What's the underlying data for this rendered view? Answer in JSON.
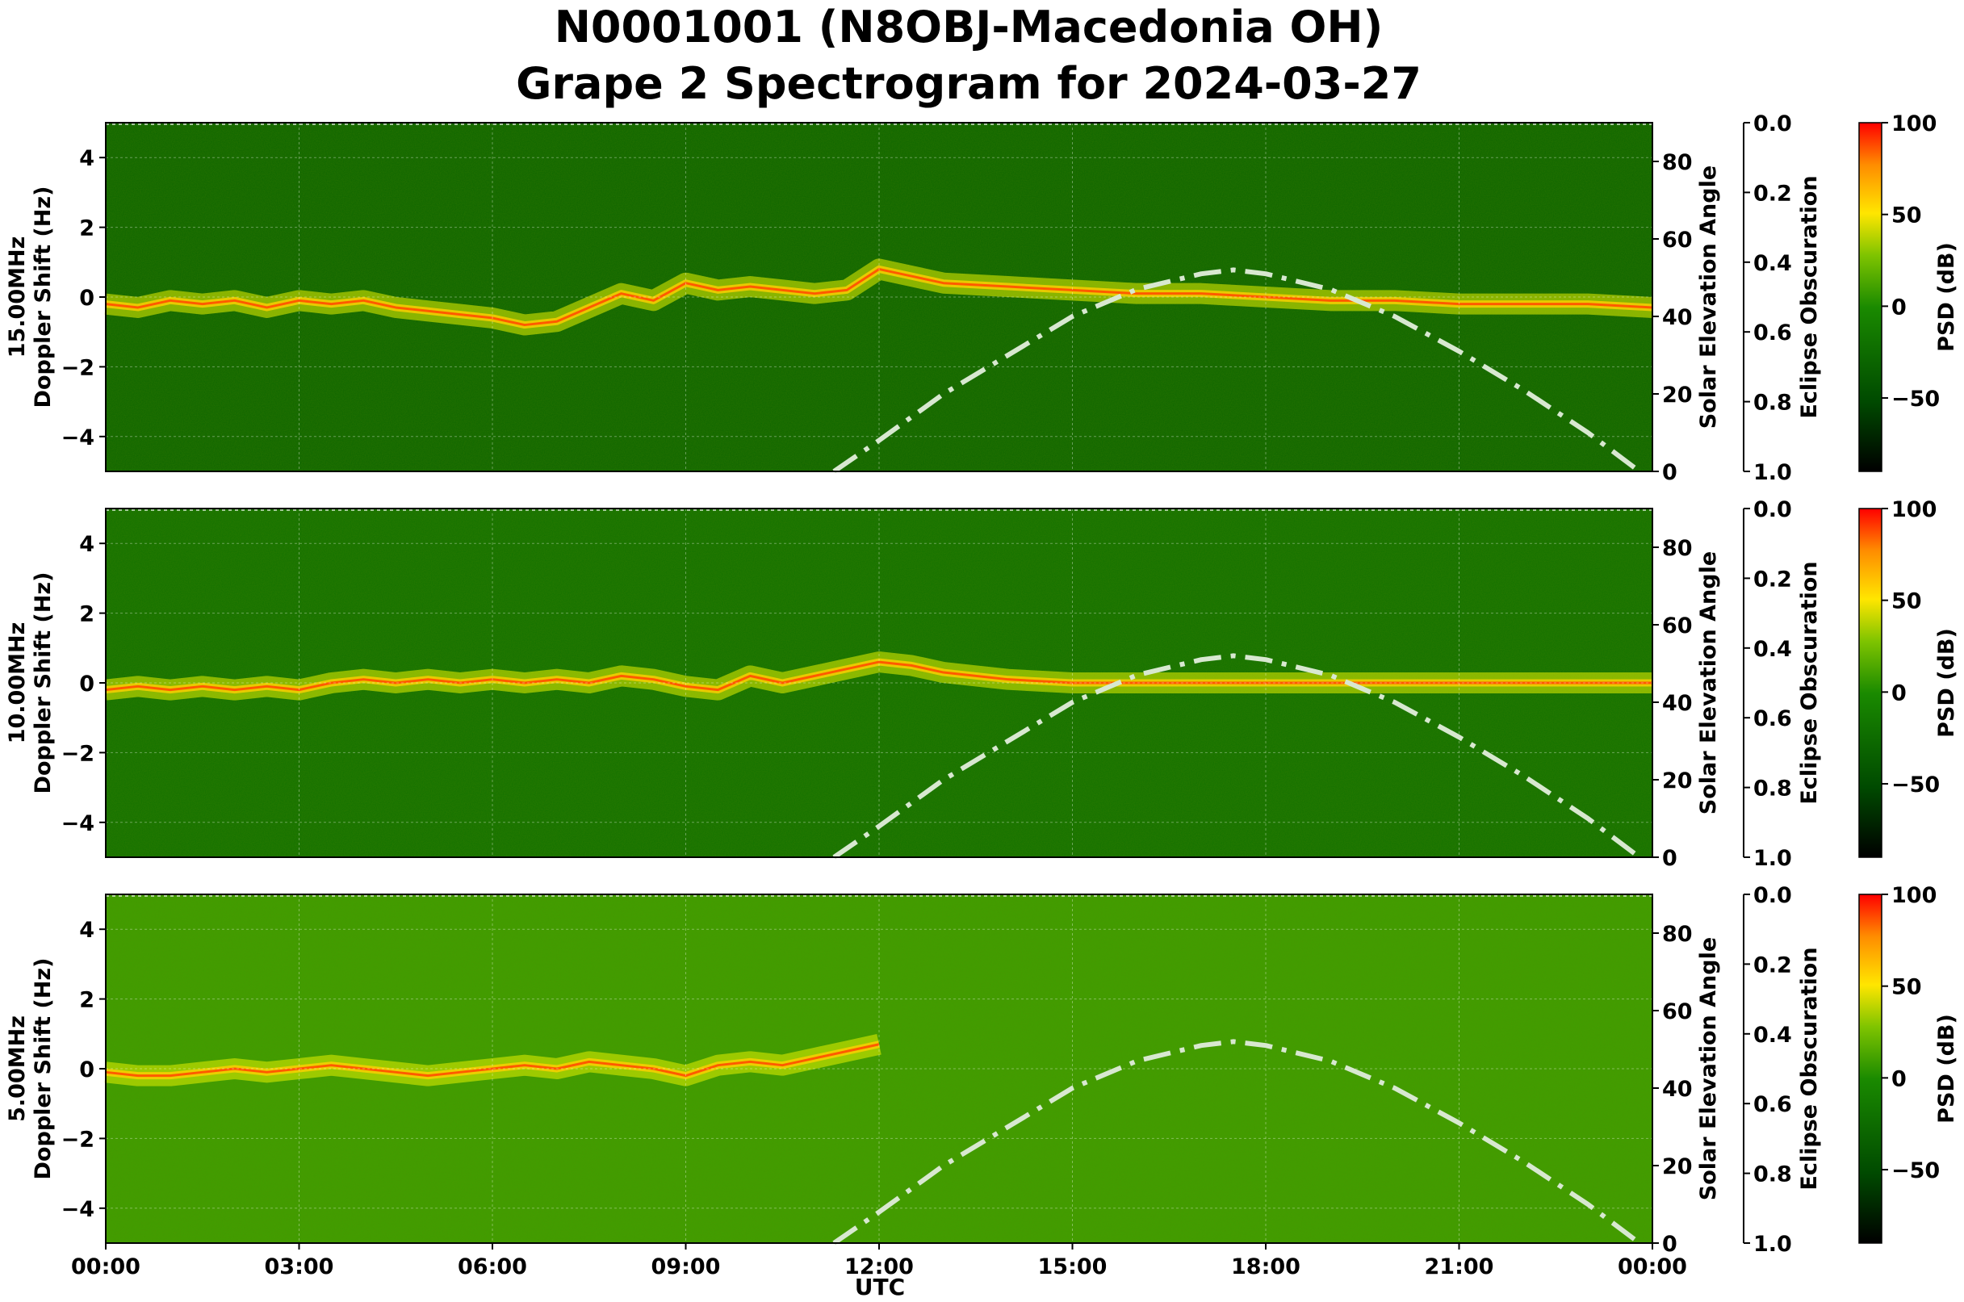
{
  "title_line1": "N0001001 (N8OBJ-Macedonia OH)",
  "title_line2": "Grape 2 Spectrogram for 2024-03-27",
  "xlabel": "UTC",
  "x_tick_labels": [
    "00:00",
    "03:00",
    "06:00",
    "09:00",
    "12:00",
    "15:00",
    "18:00",
    "21:00",
    "00:00"
  ],
  "ylabel_doppler": "Doppler Shift (Hz)",
  "y2label": "Solar Elevation Angle",
  "y3label": "Eclipse Obscuration",
  "cbar_label": "PSD (dB)",
  "doppler_ticks": [
    "4",
    "2",
    "0",
    "−2",
    "−4"
  ],
  "solar_ticks": [
    "80",
    "60",
    "40",
    "20",
    "0"
  ],
  "eclipse_ticks": [
    "0.0",
    "0.2",
    "0.4",
    "0.6",
    "0.8",
    "1.0"
  ],
  "cbar_ticks": [
    "100",
    "50",
    "0",
    "−50"
  ],
  "colors": {
    "background": "#006a00",
    "trace": "#ff5a00",
    "sun_curve": "#d8e8d0"
  },
  "chart_data": [
    {
      "type": "heatmap",
      "band": "15.00MHz",
      "xlabel": "UTC",
      "ylabel": "Doppler Shift (Hz)",
      "xlim_hours": [
        0,
        24
      ],
      "ylim": [
        -5,
        5
      ],
      "y2label": "Solar Elevation Angle",
      "y2lim": [
        0,
        90
      ],
      "y3label": "Eclipse Obscuration",
      "y3lim": [
        0,
        1
      ],
      "colorbar": {
        "label": "PSD (dB)",
        "range": [
          -90,
          100
        ]
      },
      "grid": true,
      "background_level_db": -30,
      "doppler_trace": {
        "x_hours": [
          0,
          0.5,
          1,
          1.5,
          2,
          2.5,
          3,
          3.5,
          4,
          4.5,
          5,
          5.5,
          6,
          6.5,
          7,
          7.5,
          8,
          8.5,
          9,
          9.5,
          10,
          10.5,
          11,
          11.5,
          12,
          12.5,
          13,
          14,
          15,
          16,
          17,
          18,
          19,
          20,
          21,
          22,
          23,
          24
        ],
        "y_hz": [
          -0.2,
          -0.3,
          -0.1,
          -0.2,
          -0.1,
          -0.3,
          -0.1,
          -0.2,
          -0.1,
          -0.3,
          -0.4,
          -0.5,
          -0.6,
          -0.8,
          -0.7,
          -0.3,
          0.1,
          -0.1,
          0.4,
          0.2,
          0.3,
          0.2,
          0.1,
          0.2,
          0.8,
          0.6,
          0.4,
          0.3,
          0.2,
          0.1,
          0.1,
          0.0,
          -0.1,
          -0.1,
          -0.2,
          -0.2,
          -0.2,
          -0.3
        ]
      },
      "solar_elevation_deg": {
        "x_hours": [
          11.3,
          12,
          13,
          14,
          15,
          16,
          17,
          17.5,
          18,
          19,
          20,
          21,
          22,
          23,
          23.8
        ],
        "y_deg": [
          0,
          8,
          20,
          30,
          40,
          47,
          51,
          52,
          51,
          47,
          40,
          31,
          21,
          10,
          0
        ]
      }
    },
    {
      "type": "heatmap",
      "band": "10.00MHz",
      "xlabel": "UTC",
      "ylabel": "Doppler Shift (Hz)",
      "xlim_hours": [
        0,
        24
      ],
      "ylim": [
        -5,
        5
      ],
      "y2label": "Solar Elevation Angle",
      "y2lim": [
        0,
        90
      ],
      "y3label": "Eclipse Obscuration",
      "y3lim": [
        0,
        1
      ],
      "colorbar": {
        "label": "PSD (dB)",
        "range": [
          -90,
          100
        ]
      },
      "grid": true,
      "background_level_db": -20,
      "doppler_trace": {
        "x_hours": [
          0,
          0.5,
          1,
          1.5,
          2,
          2.5,
          3,
          3.5,
          4,
          4.5,
          5,
          5.5,
          6,
          6.5,
          7,
          7.5,
          8,
          8.5,
          9,
          9.5,
          10,
          10.5,
          11,
          11.5,
          12,
          12.5,
          13,
          14,
          15,
          16,
          17,
          18,
          19,
          20,
          21,
          22,
          23,
          24
        ],
        "y_hz": [
          -0.2,
          -0.1,
          -0.2,
          -0.1,
          -0.2,
          -0.1,
          -0.2,
          0.0,
          0.1,
          0.0,
          0.1,
          0.0,
          0.1,
          0.0,
          0.1,
          0.0,
          0.2,
          0.1,
          -0.1,
          -0.2,
          0.2,
          0.0,
          0.2,
          0.4,
          0.6,
          0.5,
          0.3,
          0.1,
          0.0,
          0.0,
          0.0,
          0.0,
          0.0,
          0.0,
          0.0,
          0.0,
          0.0,
          0.0
        ]
      },
      "solar_elevation_deg": {
        "x_hours": [
          11.3,
          12,
          13,
          14,
          15,
          16,
          17,
          17.5,
          18,
          19,
          20,
          21,
          22,
          23,
          23.8
        ],
        "y_deg": [
          0,
          8,
          20,
          30,
          40,
          47,
          51,
          52,
          51,
          47,
          40,
          31,
          21,
          10,
          0
        ]
      }
    },
    {
      "type": "heatmap",
      "band": "5.00MHz",
      "xlabel": "UTC",
      "ylabel": "Doppler Shift (Hz)",
      "xlim_hours": [
        0,
        24
      ],
      "ylim": [
        -5,
        5
      ],
      "y2label": "Solar Elevation Angle",
      "y2lim": [
        0,
        90
      ],
      "y3label": "Eclipse Obscuration",
      "y3lim": [
        0,
        1
      ],
      "colorbar": {
        "label": "PSD (dB)",
        "range": [
          -90,
          100
        ]
      },
      "grid": true,
      "background_level_db": 10,
      "doppler_trace": {
        "x_hours": [
          0,
          0.5,
          1,
          1.5,
          2,
          2.5,
          3,
          3.5,
          4,
          4.5,
          5,
          5.5,
          6,
          6.5,
          7,
          7.5,
          8,
          8.5,
          9,
          9.5,
          10,
          10.5,
          11,
          11.5,
          12
        ],
        "y_hz": [
          -0.1,
          -0.2,
          -0.2,
          -0.1,
          0.0,
          -0.1,
          0.0,
          0.1,
          0.0,
          -0.1,
          -0.2,
          -0.1,
          0.0,
          0.1,
          0.0,
          0.2,
          0.1,
          0.0,
          -0.2,
          0.1,
          0.2,
          0.1,
          0.3,
          0.5,
          0.7
        ]
      },
      "solar_elevation_deg": {
        "x_hours": [
          11.3,
          12,
          13,
          14,
          15,
          16,
          17,
          17.5,
          18,
          19,
          20,
          21,
          22,
          23,
          23.8
        ],
        "y_deg": [
          0,
          8,
          20,
          30,
          40,
          47,
          51,
          52,
          51,
          47,
          40,
          31,
          21,
          10,
          0
        ]
      }
    }
  ]
}
